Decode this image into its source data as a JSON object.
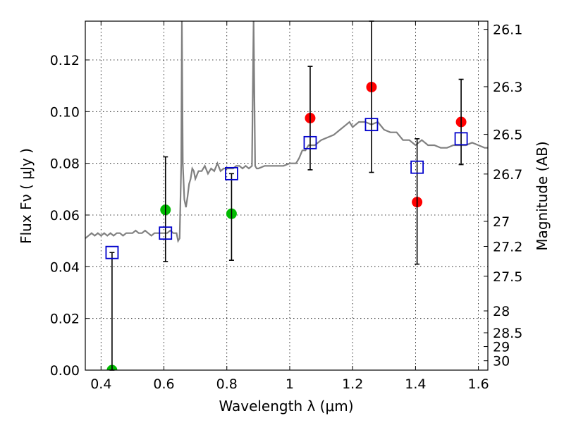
{
  "chart_data": {
    "type": "scatter",
    "xlabel": "Wavelength  λ (μm)",
    "ylabel": "Flux  Fν  ( μJy )",
    "y2label": "Magnitude (AB)",
    "xlim": [
      0.35,
      1.63
    ],
    "ylim": [
      0.0,
      0.135
    ],
    "grid": true,
    "x_ticks": [
      {
        "value": 0.4,
        "label": "0.4"
      },
      {
        "value": 0.6,
        "label": "0.6"
      },
      {
        "value": 0.8,
        "label": "0.8"
      },
      {
        "value": 1.0,
        "label": "1"
      },
      {
        "value": 1.2,
        "label": "1.2"
      },
      {
        "value": 1.4,
        "label": "1.4"
      },
      {
        "value": 1.6,
        "label": "1.6"
      }
    ],
    "y_ticks": [
      {
        "value": 0.0,
        "label": "0.00"
      },
      {
        "value": 0.02,
        "label": "0.02"
      },
      {
        "value": 0.04,
        "label": "0.04"
      },
      {
        "value": 0.06,
        "label": "0.06"
      },
      {
        "value": 0.08,
        "label": "0.08"
      },
      {
        "value": 0.1,
        "label": "0.10"
      },
      {
        "value": 0.12,
        "label": "0.12"
      }
    ],
    "y2_ticks": [
      {
        "mag": 26.1,
        "label": "26.1"
      },
      {
        "mag": 26.3,
        "label": "26.3"
      },
      {
        "mag": 26.5,
        "label": "26.5"
      },
      {
        "mag": 26.7,
        "label": "26.7"
      },
      {
        "mag": 27.0,
        "label": "27"
      },
      {
        "mag": 27.2,
        "label": "27.2"
      },
      {
        "mag": 27.5,
        "label": "27.5"
      },
      {
        "mag": 28.0,
        "label": "28"
      },
      {
        "mag": 28.5,
        "label": "28.5"
      },
      {
        "mag": 29.0,
        "label": "29"
      },
      {
        "mag": 30.0,
        "label": "30"
      }
    ],
    "colors": {
      "template": "#808080",
      "observed_red": "#ff0000",
      "observed_green": "#00bb00",
      "model": "#0000cc",
      "errorbar": "#000000",
      "grid": "#000000"
    },
    "series": [
      {
        "kind": "line",
        "role": "template_spectrum",
        "x": [
          0.35,
          0.36,
          0.37,
          0.38,
          0.39,
          0.4,
          0.41,
          0.42,
          0.43,
          0.44,
          0.45,
          0.46,
          0.47,
          0.48,
          0.49,
          0.5,
          0.51,
          0.52,
          0.53,
          0.54,
          0.55,
          0.56,
          0.57,
          0.58,
          0.59,
          0.6,
          0.61,
          0.62,
          0.63,
          0.64,
          0.645,
          0.65,
          0.655,
          0.657,
          0.66,
          0.665,
          0.67,
          0.675,
          0.68,
          0.685,
          0.69,
          0.695,
          0.7,
          0.71,
          0.72,
          0.73,
          0.74,
          0.75,
          0.76,
          0.77,
          0.78,
          0.79,
          0.8,
          0.81,
          0.82,
          0.83,
          0.84,
          0.85,
          0.86,
          0.87,
          0.88,
          0.885,
          0.89,
          0.895,
          0.9,
          0.92,
          0.94,
          0.96,
          0.98,
          1.0,
          1.02,
          1.03,
          1.04,
          1.05,
          1.06,
          1.08,
          1.1,
          1.12,
          1.14,
          1.16,
          1.18,
          1.19,
          1.2,
          1.22,
          1.24,
          1.26,
          1.28,
          1.3,
          1.32,
          1.34,
          1.36,
          1.38,
          1.4,
          1.42,
          1.44,
          1.46,
          1.48,
          1.5,
          1.52,
          1.54,
          1.56,
          1.58,
          1.6,
          1.62,
          1.63
        ],
        "y": [
          0.051,
          0.052,
          0.053,
          0.052,
          0.053,
          0.052,
          0.053,
          0.052,
          0.053,
          0.052,
          0.053,
          0.053,
          0.052,
          0.053,
          0.053,
          0.053,
          0.054,
          0.053,
          0.053,
          0.054,
          0.053,
          0.052,
          0.053,
          0.053,
          0.053,
          0.053,
          0.053,
          0.054,
          0.053,
          0.053,
          0.05,
          0.051,
          0.08,
          0.135,
          0.08,
          0.066,
          0.063,
          0.067,
          0.072,
          0.074,
          0.078,
          0.077,
          0.074,
          0.077,
          0.077,
          0.079,
          0.076,
          0.078,
          0.077,
          0.08,
          0.077,
          0.078,
          0.078,
          0.078,
          0.078,
          0.079,
          0.079,
          0.078,
          0.079,
          0.078,
          0.079,
          0.135,
          0.079,
          0.078,
          0.078,
          0.079,
          0.079,
          0.079,
          0.079,
          0.08,
          0.08,
          0.082,
          0.085,
          0.085,
          0.087,
          0.087,
          0.089,
          0.09,
          0.091,
          0.093,
          0.095,
          0.096,
          0.094,
          0.096,
          0.096,
          0.095,
          0.096,
          0.093,
          0.092,
          0.092,
          0.089,
          0.089,
          0.087,
          0.089,
          0.087,
          0.087,
          0.086,
          0.086,
          0.087,
          0.087,
          0.087,
          0.088,
          0.087,
          0.086,
          0.086
        ]
      },
      {
        "kind": "scatter",
        "role": "observed_green",
        "x": [
          0.435,
          0.605,
          0.815
        ],
        "y": [
          0.0,
          0.062,
          0.0605
        ]
      },
      {
        "kind": "scatter",
        "role": "observed_red",
        "x": [
          1.065,
          1.26,
          1.405,
          1.545
        ],
        "y": [
          0.0975,
          0.1095,
          0.065,
          0.096
        ]
      },
      {
        "kind": "errorbar",
        "x": [
          0.435,
          0.605,
          0.815,
          1.065,
          1.26,
          1.405,
          1.545
        ],
        "low": [
          0.0,
          0.042,
          0.0425,
          0.0775,
          0.0765,
          0.041,
          0.0795
        ],
        "high": [
          0.0455,
          0.0825,
          0.076,
          0.1175,
          0.135,
          0.0895,
          0.1125
        ]
      },
      {
        "kind": "scatter",
        "role": "model_photometry",
        "marker": "open-square",
        "x": [
          0.435,
          0.605,
          0.815,
          1.065,
          1.26,
          1.405,
          1.545
        ],
        "y": [
          0.0455,
          0.053,
          0.076,
          0.088,
          0.095,
          0.0785,
          0.0895
        ]
      }
    ]
  }
}
